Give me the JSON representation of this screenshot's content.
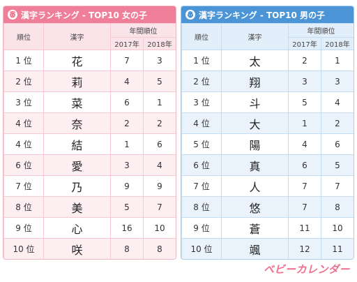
{
  "colors": {
    "girls_accent": "#ef7f98",
    "boys_accent": "#4b95d6",
    "logo": "#ef6f8f"
  },
  "girls": {
    "title": "漢字ランキング - TOP10 女の子",
    "icon": "girl-face-icon",
    "headers": {
      "rank": "順位",
      "kanji": "漢字",
      "group": "年間順位",
      "y1": "2017年",
      "y2": "2018年"
    },
    "rows": [
      {
        "rank": "1 位",
        "kanji": "花",
        "y2017": "7",
        "y2018": "3"
      },
      {
        "rank": "2 位",
        "kanji": "莉",
        "y2017": "4",
        "y2018": "5"
      },
      {
        "rank": "3 位",
        "kanji": "菜",
        "y2017": "6",
        "y2018": "1"
      },
      {
        "rank": "4 位",
        "kanji": "奈",
        "y2017": "2",
        "y2018": "2"
      },
      {
        "rank": "4 位",
        "kanji": "結",
        "y2017": "1",
        "y2018": "6"
      },
      {
        "rank": "6 位",
        "kanji": "愛",
        "y2017": "3",
        "y2018": "4"
      },
      {
        "rank": "7 位",
        "kanji": "乃",
        "y2017": "9",
        "y2018": "9"
      },
      {
        "rank": "8 位",
        "kanji": "美",
        "y2017": "5",
        "y2018": "7"
      },
      {
        "rank": "9 位",
        "kanji": "心",
        "y2017": "16",
        "y2018": "10"
      },
      {
        "rank": "10 位",
        "kanji": "咲",
        "y2017": "8",
        "y2018": "8"
      }
    ]
  },
  "boys": {
    "title": "漢字ランキング - TOP10 男の子",
    "icon": "boy-face-icon",
    "headers": {
      "rank": "順位",
      "kanji": "漢字",
      "group": "年間順位",
      "y1": "2017年",
      "y2": "2018年"
    },
    "rows": [
      {
        "rank": "1 位",
        "kanji": "太",
        "y2017": "2",
        "y2018": "1"
      },
      {
        "rank": "2 位",
        "kanji": "翔",
        "y2017": "3",
        "y2018": "3"
      },
      {
        "rank": "3 位",
        "kanji": "斗",
        "y2017": "5",
        "y2018": "4"
      },
      {
        "rank": "4 位",
        "kanji": "大",
        "y2017": "1",
        "y2018": "2"
      },
      {
        "rank": "5 位",
        "kanji": "陽",
        "y2017": "4",
        "y2018": "6"
      },
      {
        "rank": "6 位",
        "kanji": "真",
        "y2017": "6",
        "y2018": "5"
      },
      {
        "rank": "7 位",
        "kanji": "人",
        "y2017": "7",
        "y2018": "7"
      },
      {
        "rank": "8 位",
        "kanji": "悠",
        "y2017": "7",
        "y2018": "8"
      },
      {
        "rank": "9 位",
        "kanji": "蒼",
        "y2017": "11",
        "y2018": "10"
      },
      {
        "rank": "10 位",
        "kanji": "颯",
        "y2017": "12",
        "y2018": "11"
      }
    ]
  },
  "logo": {
    "text": "ベビーカレンダー"
  }
}
